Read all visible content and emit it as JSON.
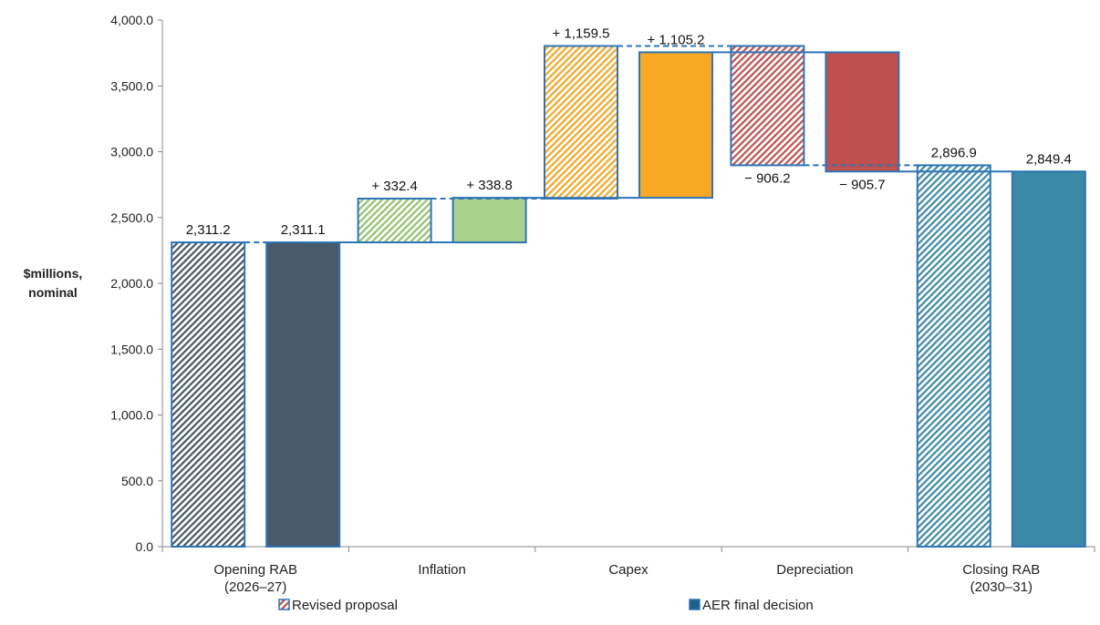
{
  "chart_data": {
    "type": "waterfall",
    "ylabel": [
      "$millions,",
      "nominal"
    ],
    "ylim": [
      0,
      4000
    ],
    "yticks": [
      0,
      500,
      1000,
      1500,
      2000,
      2500,
      3000,
      3500,
      4000
    ],
    "ytick_labels": [
      "0.0",
      "500.0",
      "1,000.0",
      "1,500.0",
      "2,000.0",
      "2,500.0",
      "3,000.0",
      "3,500.0",
      "4,000.0"
    ],
    "categories": [
      {
        "label": [
          "Opening RAB",
          "(2026–27)"
        ]
      },
      {
        "label": [
          "Inflation"
        ]
      },
      {
        "label": [
          "Capex"
        ]
      },
      {
        "label": [
          "Depreciation"
        ]
      },
      {
        "label": [
          "Closing RAB",
          "(2030–31)"
        ]
      }
    ],
    "legend": [
      {
        "name": "Revised proposal",
        "style": "hatched",
        "placement": "bottom-left"
      },
      {
        "name": "AER final decision",
        "style": "solid",
        "placement": "bottom-right"
      }
    ],
    "series": [
      {
        "name": "Revised proposal",
        "bars": [
          {
            "category": 0,
            "from": 0,
            "to": 2311.2,
            "label": "2,311.2",
            "label_pos": "top",
            "color": "#475667"
          },
          {
            "category": 1,
            "from": 2311.2,
            "to": 2643.6,
            "label": "+ 332.4",
            "label_pos": "top",
            "color": "#8fc46a"
          },
          {
            "category": 2,
            "from": 2643.6,
            "to": 3803.1,
            "label": "+ 1,159.5",
            "label_pos": "top",
            "color": "#f6a623"
          },
          {
            "category": 3,
            "from": 3803.1,
            "to": 2896.9,
            "label": "− 906.2",
            "label_pos": "bottom",
            "color": "#c0504d"
          },
          {
            "category": 4,
            "from": 0,
            "to": 2896.9,
            "label": "2,896.9",
            "label_pos": "top",
            "color": "#3b8aa8"
          }
        ]
      },
      {
        "name": "AER final decision",
        "bars": [
          {
            "category": 0,
            "from": 0,
            "to": 2311.1,
            "label": "2,311.1",
            "label_pos": "top",
            "color": "#4a5a6b"
          },
          {
            "category": 1,
            "from": 2311.1,
            "to": 2649.9,
            "label": "+ 338.8",
            "label_pos": "top",
            "color": "#a9d18e"
          },
          {
            "category": 2,
            "from": 2649.9,
            "to": 3755.1,
            "label": "+ 1,105.2",
            "label_pos": "top",
            "color": "#f9a825"
          },
          {
            "category": 3,
            "from": 3755.1,
            "to": 2849.4,
            "label": "− 905.7",
            "label_pos": "bottom",
            "color": "#c0504d"
          },
          {
            "category": 4,
            "from": 0,
            "to": 2849.4,
            "label": "2,849.4",
            "label_pos": "top",
            "color": "#3a89a6"
          }
        ]
      }
    ],
    "outline_color": "#2e75b6",
    "connector_color": "#2e75b6"
  }
}
